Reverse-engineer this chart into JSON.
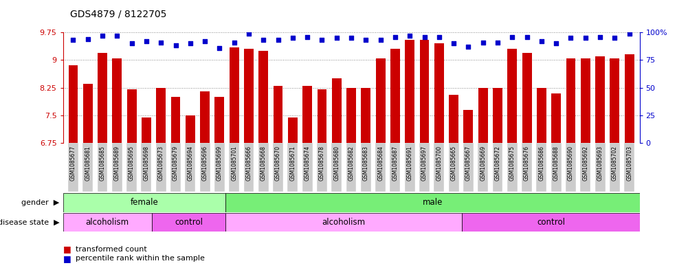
{
  "title": "GDS4879 / 8122705",
  "samples": [
    "GSM1085677",
    "GSM1085681",
    "GSM1085685",
    "GSM1085689",
    "GSM1085695",
    "GSM1085698",
    "GSM1085673",
    "GSM1085679",
    "GSM1085694",
    "GSM1085696",
    "GSM1085699",
    "GSM1085701",
    "GSM1085666",
    "GSM1085668",
    "GSM1085670",
    "GSM1085671",
    "GSM1085674",
    "GSM1085678",
    "GSM1085680",
    "GSM1085682",
    "GSM1085683",
    "GSM1085684",
    "GSM1085687",
    "GSM1085691",
    "GSM1085697",
    "GSM1085700",
    "GSM1085665",
    "GSM1085667",
    "GSM1085669",
    "GSM1085672",
    "GSM1085675",
    "GSM1085676",
    "GSM1085686",
    "GSM1085688",
    "GSM1085690",
    "GSM1085692",
    "GSM1085693",
    "GSM1085702",
    "GSM1085703"
  ],
  "bar_values": [
    8.85,
    8.35,
    9.2,
    9.05,
    8.2,
    7.45,
    8.25,
    8.0,
    7.5,
    8.15,
    8.0,
    9.35,
    9.3,
    9.25,
    8.3,
    7.45,
    8.3,
    8.2,
    8.5,
    8.25,
    8.25,
    9.05,
    9.3,
    9.55,
    9.55,
    9.45,
    8.05,
    7.65,
    8.25,
    8.25,
    9.3,
    9.2,
    8.25,
    8.1,
    9.05,
    9.05,
    9.1,
    9.05,
    9.15
  ],
  "percentile_values": [
    93,
    94,
    97,
    97,
    90,
    92,
    91,
    88,
    90,
    92,
    86,
    91,
    99,
    93,
    93,
    95,
    96,
    93,
    95,
    95,
    93,
    93,
    96,
    97,
    96,
    96,
    90,
    87,
    91,
    91,
    96,
    96,
    92,
    90,
    95,
    95,
    96,
    95,
    99
  ],
  "ymin": 6.75,
  "ymax": 9.75,
  "yticks_left": [
    6.75,
    7.5,
    8.25,
    9.0,
    9.75
  ],
  "ytick_labels_left": [
    "6.75",
    "7.5",
    "8.25",
    "9",
    "9.75"
  ],
  "ylim_right": [
    0,
    100
  ],
  "yticks_right": [
    0,
    25,
    50,
    75,
    100
  ],
  "bar_color": "#cc0000",
  "dot_color": "#0000cc",
  "grid_color": "#888888",
  "tick_bg_color": "#cccccc",
  "gender_sections": [
    {
      "label": "female",
      "start": 0,
      "end": 11,
      "color": "#aaffaa"
    },
    {
      "label": "male",
      "start": 11,
      "end": 39,
      "color": "#77ee77"
    }
  ],
  "disease_sections": [
    {
      "label": "alcoholism",
      "start": 0,
      "end": 6,
      "color": "#ffaaff"
    },
    {
      "label": "control",
      "start": 6,
      "end": 11,
      "color": "#ee66ee"
    },
    {
      "label": "alcoholism",
      "start": 11,
      "end": 27,
      "color": "#ffaaff"
    },
    {
      "label": "control",
      "start": 27,
      "end": 39,
      "color": "#ee66ee"
    }
  ],
  "legend_bar_label": "transformed count",
  "legend_dot_label": "percentile rank within the sample"
}
